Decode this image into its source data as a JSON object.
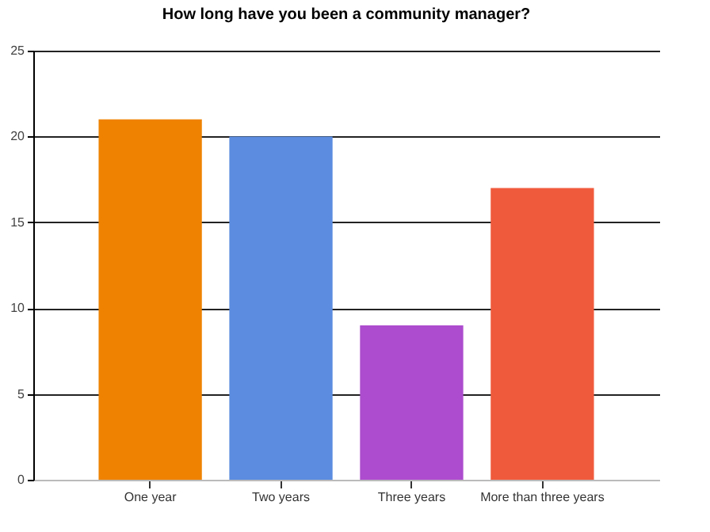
{
  "chart_data": {
    "type": "bar",
    "title": "How long have you been a community manager?",
    "categories": [
      "One year",
      "Two years",
      "Three years",
      "More than three years"
    ],
    "values": [
      21,
      20,
      9,
      17
    ],
    "colors": [
      "#ef8200",
      "#5b8ce0",
      "#ad4cce",
      "#f05a3c"
    ],
    "ylim": [
      0,
      25
    ],
    "yticks": [
      0,
      5,
      10,
      15,
      20,
      25
    ],
    "grid": true
  }
}
